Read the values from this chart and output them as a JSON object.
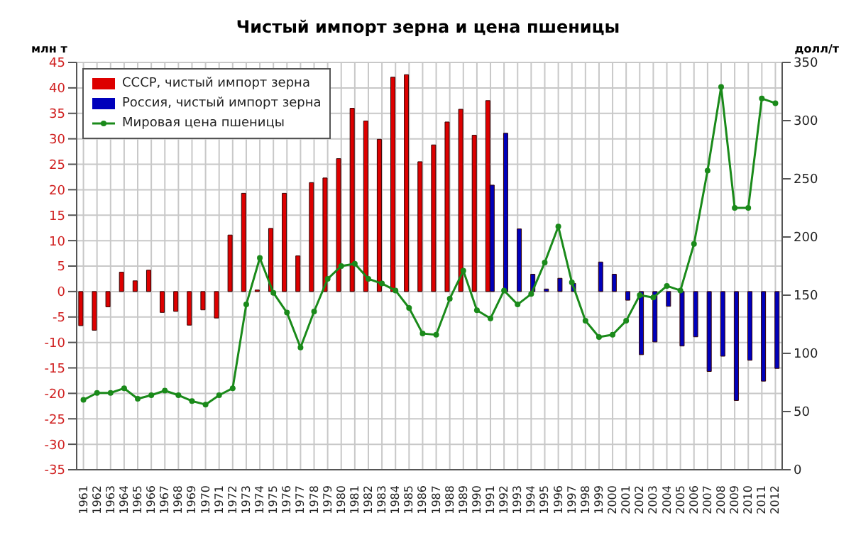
{
  "chart_data": {
    "type": "bar",
    "title": "Чистый импорт зерна и цена пшеницы",
    "ylabel": "млн т",
    "y2label": "долл/т",
    "categories": [
      "1961",
      "1962",
      "1963",
      "1964",
      "1965",
      "1966",
      "1967",
      "1968",
      "1969",
      "1970",
      "1971",
      "1972",
      "1973",
      "1974",
      "1975",
      "1976",
      "1977",
      "1978",
      "1979",
      "1980",
      "1981",
      "1982",
      "1983",
      "1984",
      "1985",
      "1986",
      "1987",
      "1988",
      "1989",
      "1990",
      "1991",
      "1992",
      "1993",
      "1994",
      "1995",
      "1996",
      "1997",
      "1998",
      "1999",
      "2000",
      "2001",
      "2002",
      "2003",
      "2004",
      "2005",
      "2006",
      "2007",
      "2008",
      "2009",
      "2010",
      "2011",
      "2012"
    ],
    "series": [
      {
        "name": "СССР, чистый импорт зерна",
        "color": "#dd0000",
        "values": [
          -6.7,
          -7.6,
          -3.0,
          3.8,
          2.1,
          4.2,
          -4.1,
          -3.9,
          -6.6,
          -3.6,
          -5.2,
          11.1,
          19.3,
          0.3,
          12.4,
          19.3,
          7.0,
          21.4,
          22.3,
          26.1,
          36.0,
          33.5,
          29.9,
          42.1,
          42.6,
          25.5,
          28.8,
          33.3,
          35.8,
          30.7,
          37.5,
          null,
          null,
          null,
          null,
          null,
          null,
          null,
          null,
          null,
          null,
          null,
          null,
          null,
          null,
          null,
          null,
          null,
          null,
          null,
          null,
          null
        ]
      },
      {
        "name": "Россия, чистый импорт зерна",
        "color": "#0000bb",
        "values": [
          null,
          null,
          null,
          null,
          null,
          null,
          null,
          null,
          null,
          null,
          null,
          null,
          null,
          null,
          null,
          null,
          null,
          null,
          null,
          null,
          null,
          null,
          null,
          null,
          null,
          null,
          null,
          null,
          null,
          null,
          20.9,
          31.1,
          12.3,
          3.4,
          0.5,
          2.6,
          1.6,
          null,
          5.8,
          3.4,
          -1.7,
          -12.4,
          -9.9,
          -2.9,
          -10.7,
          -8.9,
          -15.7,
          -12.7,
          -21.4,
          -13.5,
          -17.6,
          -15.1
        ]
      },
      {
        "name": "Мировая цена пшеницы",
        "type": "line",
        "axis": "y2",
        "color": "#1a8a1a",
        "values": [
          60,
          66,
          66,
          70,
          61,
          64,
          68,
          64,
          59,
          56,
          64,
          70,
          142,
          182,
          152,
          135,
          105,
          136,
          164,
          175,
          177,
          164,
          160,
          154,
          139,
          117,
          116,
          147,
          171,
          137,
          130,
          154,
          142,
          151,
          178,
          209,
          161,
          128,
          114,
          116,
          128,
          150,
          148,
          158,
          154,
          194,
          257,
          329,
          225,
          225,
          319,
          315
        ]
      }
    ],
    "ylim": [
      -35,
      45
    ],
    "yticks": [
      -35,
      -30,
      -25,
      -20,
      -15,
      -10,
      -5,
      0,
      5,
      10,
      15,
      20,
      25,
      30,
      35,
      40,
      45
    ],
    "y2lim": [
      0,
      350
    ],
    "y2ticks": [
      0,
      50,
      100,
      150,
      200,
      250,
      300,
      350
    ],
    "grid": true,
    "legend": "top left",
    "marker": "circle",
    "line_style": "solid"
  }
}
